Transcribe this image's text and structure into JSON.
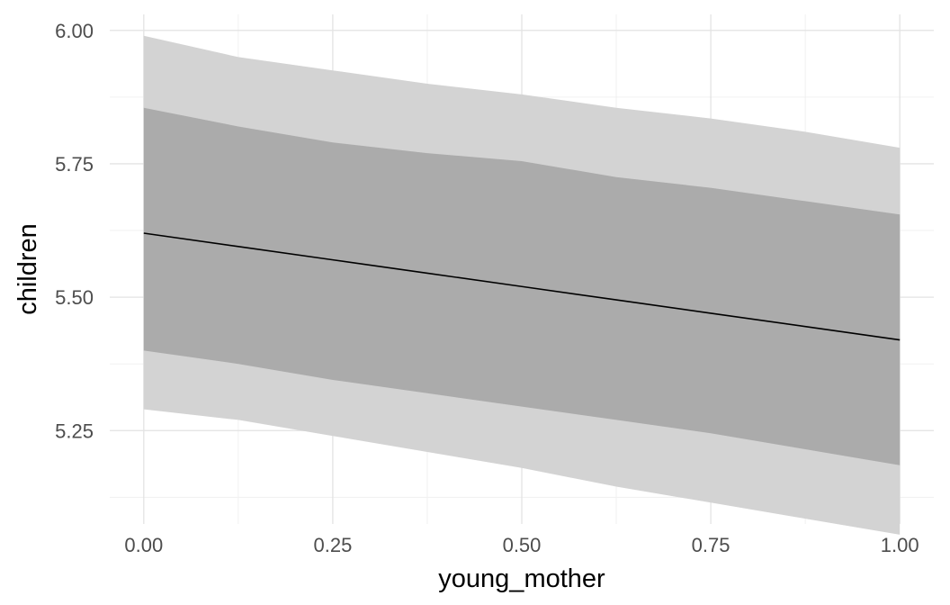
{
  "chart_data": {
    "type": "line",
    "title": "",
    "xlabel": "young_mother",
    "ylabel": "children",
    "xlim": [
      -0.045,
      1.045
    ],
    "ylim": [
      5.075,
      6.03
    ],
    "x_ticks": [
      0.0,
      0.25,
      0.5,
      0.75,
      1.0
    ],
    "x_tick_labels": [
      "0.00",
      "0.25",
      "0.50",
      "0.75",
      "1.00"
    ],
    "y_ticks": [
      5.25,
      5.5,
      5.75,
      6.0
    ],
    "y_tick_labels": [
      "5.25",
      "5.50",
      "5.75",
      "6.00"
    ],
    "x_minor_ticks": [
      0.125,
      0.375,
      0.625,
      0.875
    ],
    "y_minor_ticks": [
      5.125,
      5.375,
      5.625,
      5.875
    ],
    "grid": true,
    "legend": "none",
    "x": [
      0.0,
      0.125,
      0.25,
      0.375,
      0.5,
      0.625,
      0.75,
      0.875,
      1.0
    ],
    "series": [
      {
        "role": "mean",
        "color": "#000000",
        "values": [
          5.62,
          5.595,
          5.57,
          5.545,
          5.52,
          5.495,
          5.47,
          5.445,
          5.42
        ]
      },
      {
        "role": "inner-interval",
        "color": "#9e9e9e",
        "upper": [
          5.855,
          5.82,
          5.79,
          5.77,
          5.755,
          5.725,
          5.705,
          5.68,
          5.655
        ],
        "lower": [
          5.4,
          5.375,
          5.345,
          5.32,
          5.295,
          5.27,
          5.245,
          5.215,
          5.185
        ]
      },
      {
        "role": "outer-interval",
        "color": "#d3d3d3",
        "upper": [
          5.99,
          5.95,
          5.925,
          5.9,
          5.88,
          5.855,
          5.835,
          5.81,
          5.78
        ],
        "lower": [
          5.29,
          5.27,
          5.24,
          5.21,
          5.18,
          5.145,
          5.115,
          5.085,
          5.055
        ]
      }
    ]
  }
}
